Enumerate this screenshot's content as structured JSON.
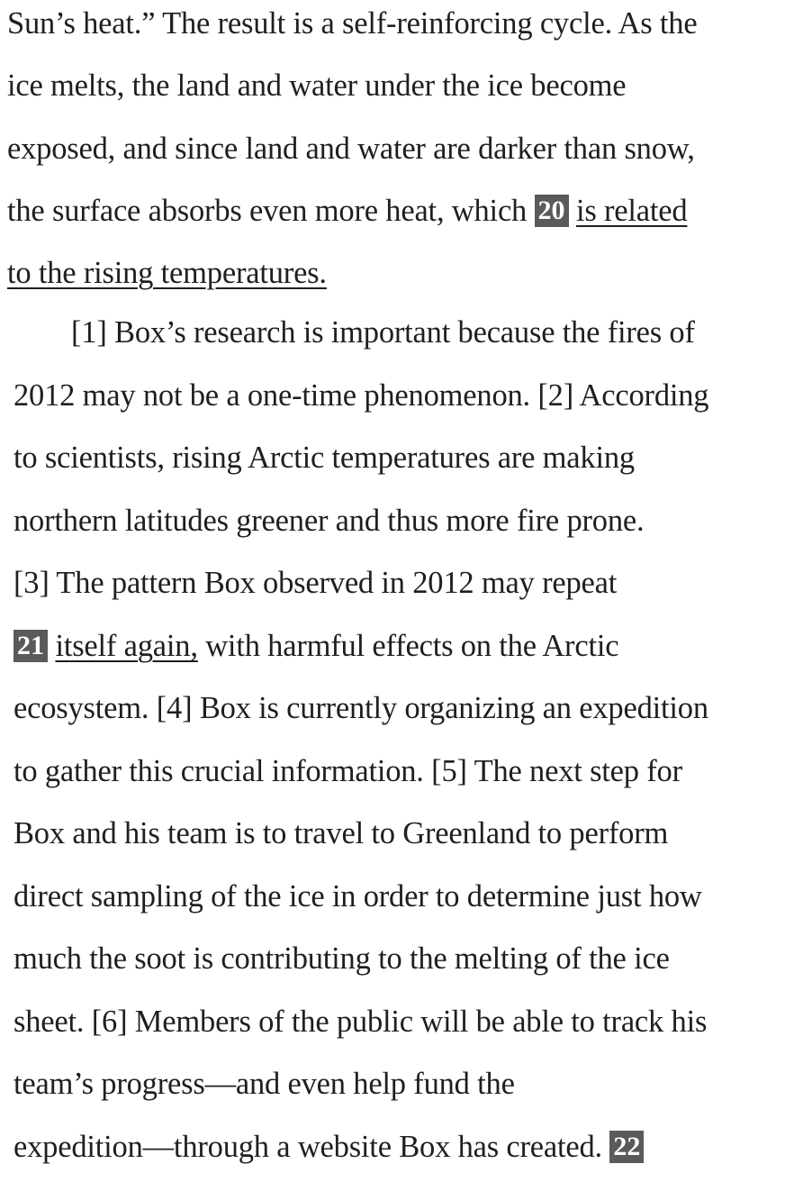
{
  "passage": {
    "p1_lines": [
      "Sun’s heat.” The result is a self-reinforcing cycle. As the",
      "ice melts, the land and water under the ice become",
      "exposed, and since land and water are darker than snow,",
      "the surface absorbs even more heat, which "
    ],
    "q20": {
      "number": "20",
      "underlined_part1": "is related",
      "underlined_part2": "to the rising temperatures."
    },
    "p2_lines": [
      "[1] Box’s research is important because the fires of",
      "2012 may not be a one-time phenomenon. [2] According",
      "to scientists, rising Arctic temperatures are making",
      "northern latitudes greener and thus more fire prone.",
      "[3] The pattern Box observed in 2012 may repeat"
    ],
    "q21": {
      "number": "21",
      "underlined": "itself again,",
      "after": " with harmful effects on the Arctic"
    },
    "p2_rest": [
      "ecosystem. [4] Box is currently organizing an expedition",
      "to gather this crucial information. [5] The next step for",
      "Box and his team is to travel to Greenland to perform",
      "direct sampling of the ice in order to determine just how",
      "much the soot is contributing to the melting of the ice",
      "sheet. [6] Members of the public will be able to track his",
      "team’s progress—and even help fund the",
      "expedition—through a website Box has created. "
    ],
    "q22": {
      "number": "22"
    }
  }
}
